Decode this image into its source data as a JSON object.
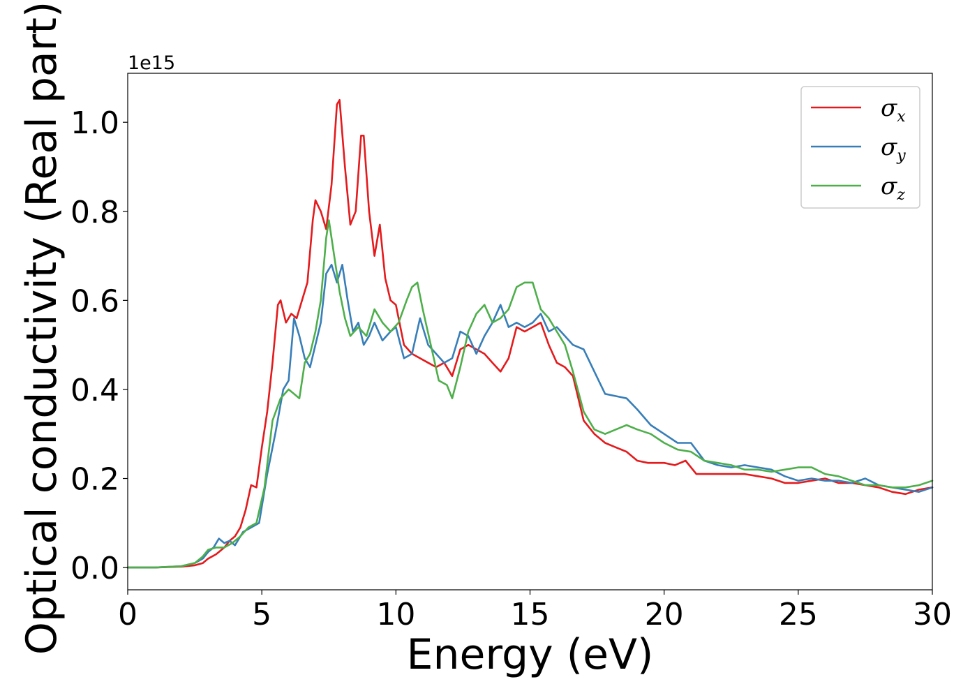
{
  "chart_data": {
    "type": "line",
    "title": "",
    "xlabel": "Energy (eV)",
    "ylabel": "Optical conductivity (Real part)",
    "y_offset_label": "1e15",
    "xlim": [
      0,
      30
    ],
    "ylim": [
      -0.05,
      1.11
    ],
    "xticks": [
      0,
      5,
      10,
      15,
      20,
      25,
      30
    ],
    "xtick_labels": [
      "0",
      "5",
      "10",
      "15",
      "20",
      "25",
      "30"
    ],
    "yticks": [
      0.0,
      0.2,
      0.4,
      0.6,
      0.8,
      1.0
    ],
    "ytick_labels": [
      "0.0",
      "0.2",
      "0.4",
      "0.6",
      "0.8",
      "1.0"
    ],
    "grid": false,
    "legend_position": "top-right",
    "series": [
      {
        "name": "σx",
        "symbol": "σ",
        "subscript": "x",
        "color": "#e41a1c",
        "x": [
          0,
          1,
          2,
          2.5,
          2.8,
          3.0,
          3.3,
          3.6,
          3.8,
          4.0,
          4.2,
          4.4,
          4.6,
          4.8,
          5.0,
          5.2,
          5.4,
          5.6,
          5.7,
          5.9,
          6.1,
          6.3,
          6.5,
          6.7,
          6.9,
          7.0,
          7.2,
          7.4,
          7.6,
          7.8,
          7.9,
          8.1,
          8.3,
          8.5,
          8.7,
          8.8,
          9.0,
          9.2,
          9.4,
          9.6,
          9.8,
          10.0,
          10.3,
          10.6,
          10.9,
          11.2,
          11.5,
          11.8,
          12.1,
          12.4,
          12.7,
          13.0,
          13.3,
          13.6,
          13.9,
          14.2,
          14.5,
          14.8,
          15.1,
          15.4,
          15.7,
          16.0,
          16.3,
          16.6,
          17.0,
          17.4,
          17.8,
          18.2,
          18.6,
          19.0,
          19.4,
          20.0,
          20.4,
          20.8,
          21.2,
          21.6,
          22.0,
          22.5,
          23.0,
          23.5,
          24.0,
          24.5,
          25.0,
          25.5,
          26.0,
          26.5,
          27.0,
          27.5,
          28.0,
          28.5,
          29.0,
          29.5,
          30.0
        ],
        "y": [
          0,
          0,
          0.002,
          0.005,
          0.01,
          0.02,
          0.03,
          0.045,
          0.06,
          0.07,
          0.09,
          0.13,
          0.185,
          0.18,
          0.27,
          0.35,
          0.46,
          0.59,
          0.6,
          0.55,
          0.57,
          0.56,
          0.6,
          0.64,
          0.78,
          0.825,
          0.8,
          0.76,
          0.86,
          1.04,
          1.05,
          0.9,
          0.77,
          0.8,
          0.97,
          0.97,
          0.8,
          0.7,
          0.77,
          0.65,
          0.6,
          0.59,
          0.5,
          0.48,
          0.47,
          0.46,
          0.45,
          0.46,
          0.43,
          0.49,
          0.5,
          0.49,
          0.48,
          0.46,
          0.44,
          0.47,
          0.54,
          0.53,
          0.54,
          0.55,
          0.5,
          0.46,
          0.45,
          0.43,
          0.33,
          0.3,
          0.28,
          0.27,
          0.26,
          0.24,
          0.235,
          0.235,
          0.23,
          0.24,
          0.21,
          0.21,
          0.21,
          0.21,
          0.21,
          0.205,
          0.2,
          0.19,
          0.19,
          0.195,
          0.2,
          0.19,
          0.19,
          0.185,
          0.18,
          0.17,
          0.165,
          0.175,
          0.18
        ]
      },
      {
        "name": "σy",
        "symbol": "σ",
        "subscript": "y",
        "color": "#377eb8",
        "x": [
          0,
          1,
          2,
          2.5,
          2.8,
          3.0,
          3.2,
          3.4,
          3.6,
          3.8,
          4.0,
          4.3,
          4.6,
          4.9,
          5.2,
          5.5,
          5.8,
          6.0,
          6.2,
          6.4,
          6.6,
          6.8,
          7.0,
          7.2,
          7.4,
          7.6,
          7.8,
          8.0,
          8.2,
          8.4,
          8.6,
          8.8,
          9.0,
          9.2,
          9.5,
          9.8,
          10.0,
          10.3,
          10.6,
          10.9,
          11.2,
          11.5,
          11.8,
          12.1,
          12.4,
          12.7,
          13.0,
          13.3,
          13.6,
          13.9,
          14.2,
          14.5,
          14.8,
          15.1,
          15.4,
          15.7,
          16.0,
          16.3,
          16.6,
          17.0,
          17.4,
          17.8,
          18.2,
          18.6,
          19.0,
          19.5,
          20.0,
          20.5,
          21.0,
          21.5,
          22.0,
          22.5,
          23.0,
          23.5,
          24.0,
          24.5,
          25.0,
          25.5,
          26.0,
          26.5,
          27.0,
          27.5,
          28.0,
          28.5,
          29.0,
          29.5,
          30.0
        ],
        "y": [
          0,
          0,
          0.003,
          0.01,
          0.02,
          0.035,
          0.045,
          0.065,
          0.055,
          0.06,
          0.05,
          0.08,
          0.09,
          0.1,
          0.21,
          0.3,
          0.4,
          0.42,
          0.56,
          0.52,
          0.47,
          0.45,
          0.5,
          0.55,
          0.66,
          0.68,
          0.64,
          0.68,
          0.6,
          0.53,
          0.55,
          0.5,
          0.52,
          0.55,
          0.51,
          0.53,
          0.54,
          0.47,
          0.48,
          0.56,
          0.5,
          0.48,
          0.46,
          0.47,
          0.53,
          0.52,
          0.48,
          0.52,
          0.55,
          0.59,
          0.54,
          0.55,
          0.54,
          0.55,
          0.57,
          0.53,
          0.54,
          0.52,
          0.5,
          0.49,
          0.44,
          0.39,
          0.385,
          0.38,
          0.355,
          0.32,
          0.3,
          0.28,
          0.28,
          0.24,
          0.23,
          0.225,
          0.23,
          0.225,
          0.22,
          0.205,
          0.195,
          0.2,
          0.195,
          0.195,
          0.19,
          0.2,
          0.185,
          0.18,
          0.175,
          0.17,
          0.18
        ]
      },
      {
        "name": "σz",
        "symbol": "σ",
        "subscript": "z",
        "color": "#4daf4a",
        "x": [
          0,
          1,
          2,
          2.5,
          2.8,
          3.0,
          3.3,
          3.6,
          3.9,
          4.2,
          4.5,
          4.8,
          5.1,
          5.4,
          5.7,
          6.0,
          6.2,
          6.4,
          6.6,
          6.8,
          7.0,
          7.2,
          7.4,
          7.5,
          7.7,
          7.9,
          8.1,
          8.3,
          8.6,
          8.9,
          9.2,
          9.5,
          9.8,
          10.1,
          10.4,
          10.6,
          10.8,
          11.0,
          11.3,
          11.6,
          11.9,
          12.1,
          12.4,
          12.7,
          13.0,
          13.3,
          13.6,
          13.9,
          14.2,
          14.5,
          14.8,
          15.1,
          15.4,
          15.7,
          16.0,
          16.3,
          16.6,
          17.0,
          17.4,
          17.8,
          18.2,
          18.6,
          19.0,
          19.5,
          20.0,
          20.5,
          21.0,
          21.5,
          22.0,
          22.5,
          23.0,
          23.5,
          24.0,
          24.5,
          25.0,
          25.5,
          26.0,
          26.5,
          27.0,
          27.5,
          28.0,
          28.5,
          29.0,
          29.5,
          30.0
        ],
        "y": [
          0,
          0,
          0.003,
          0.01,
          0.025,
          0.04,
          0.045,
          0.045,
          0.055,
          0.07,
          0.09,
          0.1,
          0.18,
          0.33,
          0.38,
          0.4,
          0.39,
          0.38,
          0.46,
          0.48,
          0.53,
          0.6,
          0.74,
          0.78,
          0.7,
          0.62,
          0.56,
          0.52,
          0.54,
          0.52,
          0.58,
          0.55,
          0.53,
          0.55,
          0.6,
          0.63,
          0.64,
          0.58,
          0.5,
          0.42,
          0.41,
          0.38,
          0.45,
          0.53,
          0.57,
          0.59,
          0.55,
          0.56,
          0.58,
          0.63,
          0.64,
          0.64,
          0.58,
          0.56,
          0.53,
          0.5,
          0.44,
          0.35,
          0.31,
          0.3,
          0.31,
          0.32,
          0.31,
          0.3,
          0.28,
          0.265,
          0.26,
          0.24,
          0.235,
          0.23,
          0.22,
          0.22,
          0.215,
          0.22,
          0.225,
          0.225,
          0.21,
          0.205,
          0.195,
          0.185,
          0.185,
          0.18,
          0.18,
          0.185,
          0.195
        ]
      }
    ]
  }
}
